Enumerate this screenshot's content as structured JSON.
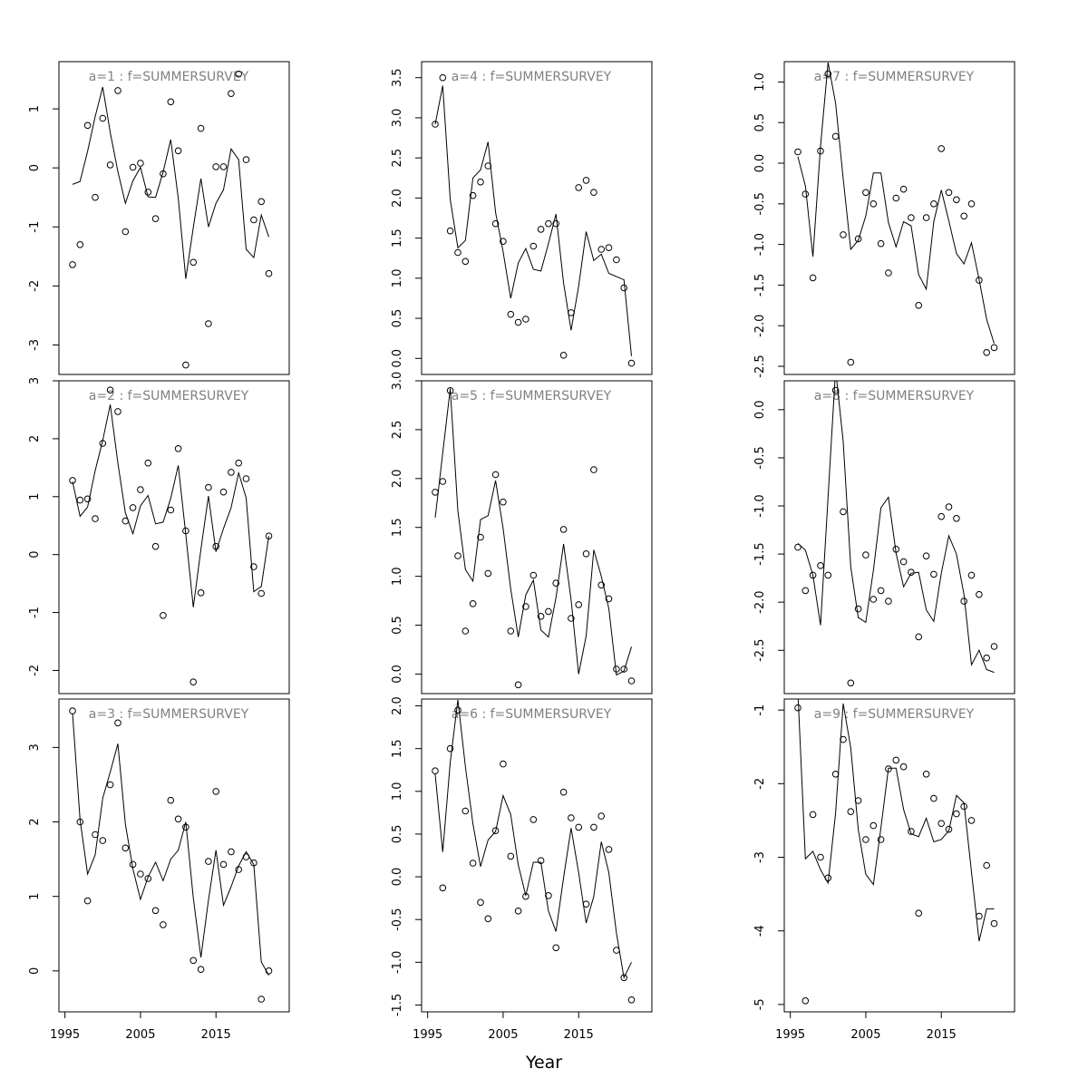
{
  "chart_data": {
    "type": "scatter",
    "xlabel": "Year",
    "x_ticks": [
      1995,
      2005,
      2015
    ],
    "panels": [
      {
        "title": "a=1 : f=SUMMERSURVEY",
        "ylim": [
          -3.5,
          1.8
        ],
        "y_ticks": [
          -3,
          -2,
          -1,
          0,
          1
        ],
        "years": [
          1996,
          1997,
          1998,
          1999,
          2000,
          2001,
          2002,
          2003,
          2004,
          2005,
          2006,
          2007,
          2008,
          2009,
          2010,
          2011,
          2012,
          2013,
          2014,
          2015,
          2016,
          2017,
          2018,
          2019,
          2020,
          2021,
          2022
        ],
        "observed": [
          -1.64,
          -1.3,
          0.72,
          -0.5,
          0.84,
          0.05,
          1.31,
          -1.08,
          0.01,
          0.08,
          -0.41,
          -0.86,
          -0.1,
          1.12,
          0.29,
          -3.34,
          -1.6,
          0.67,
          -2.64,
          0.02,
          0.02,
          1.26,
          1.59,
          0.14,
          -0.88,
          -0.57,
          -1.79
        ],
        "fitted": [
          -0.28,
          -0.23,
          0.28,
          0.87,
          1.37,
          0.6,
          -0.06,
          -0.6,
          -0.22,
          0.01,
          -0.49,
          -0.5,
          -0.07,
          0.48,
          -0.51,
          -1.88,
          -1.01,
          -0.18,
          -1.0,
          -0.6,
          -0.37,
          0.32,
          0.14,
          -1.38,
          -1.52,
          -0.8,
          -1.17
        ]
      },
      {
        "title": "a=2 : f=SUMMERSURVEY",
        "ylim": [
          -2.4,
          3.0
        ],
        "y_ticks": [
          -2,
          -1,
          0,
          1,
          2,
          3
        ],
        "years": [
          1996,
          1997,
          1998,
          1999,
          2000,
          2001,
          2002,
          2003,
          2004,
          2005,
          2006,
          2007,
          2008,
          2009,
          2010,
          2011,
          2012,
          2013,
          2014,
          2015,
          2016,
          2017,
          2018,
          2019,
          2020,
          2021,
          2022
        ],
        "observed": [
          1.28,
          0.94,
          0.96,
          0.62,
          1.92,
          2.84,
          2.47,
          0.58,
          0.81,
          1.12,
          1.58,
          0.14,
          -1.05,
          0.77,
          1.83,
          0.41,
          -2.2,
          -0.66,
          1.16,
          0.14,
          1.08,
          1.42,
          1.58,
          1.31,
          -0.21,
          -0.67,
          0.32
        ],
        "fitted": [
          1.26,
          0.66,
          0.82,
          1.45,
          1.97,
          2.59,
          1.58,
          0.72,
          0.36,
          0.84,
          1.02,
          0.53,
          0.56,
          0.97,
          1.54,
          0.35,
          -0.91,
          0.09,
          1.01,
          0.05,
          0.45,
          0.81,
          1.41,
          0.98,
          -0.64,
          -0.55,
          0.32
        ]
      },
      {
        "title": "a=3 : f=SUMMERSURVEY",
        "ylim": [
          -0.55,
          3.65
        ],
        "y_ticks": [
          0,
          1,
          2,
          3
        ],
        "years": [
          1996,
          1997,
          1998,
          1999,
          2000,
          2001,
          2002,
          2003,
          2004,
          2005,
          2006,
          2007,
          2008,
          2009,
          2010,
          2011,
          2012,
          2013,
          2014,
          2015,
          2016,
          2017,
          2018,
          2019,
          2020,
          2021,
          2022
        ],
        "observed": [
          3.49,
          2.0,
          0.94,
          1.83,
          1.75,
          2.5,
          3.33,
          1.65,
          1.43,
          1.3,
          1.24,
          0.81,
          0.62,
          2.29,
          2.04,
          1.93,
          0.14,
          0.02,
          1.47,
          2.41,
          1.43,
          1.6,
          1.36,
          1.53,
          1.45,
          -0.38,
          0.0
        ],
        "fitted": [
          3.46,
          2.03,
          1.3,
          1.56,
          2.32,
          2.67,
          3.05,
          1.97,
          1.37,
          0.96,
          1.26,
          1.46,
          1.21,
          1.5,
          1.62,
          2.0,
          0.98,
          0.18,
          0.95,
          1.62,
          0.88,
          1.13,
          1.41,
          1.6,
          1.43,
          0.12,
          -0.06
        ]
      },
      {
        "title": "a=4 : f=SUMMERSURVEY",
        "ylim": [
          -0.2,
          3.7
        ],
        "y_ticks": [
          0.0,
          0.5,
          1.0,
          1.5,
          2.0,
          2.5,
          3.0,
          3.5
        ],
        "years": [
          1996,
          1997,
          1998,
          1999,
          2000,
          2001,
          2002,
          2003,
          2004,
          2005,
          2006,
          2007,
          2008,
          2009,
          2010,
          2011,
          2012,
          2013,
          2014,
          2015,
          2016,
          2017,
          2018,
          2019,
          2020,
          2021,
          2022
        ],
        "observed": [
          2.92,
          3.5,
          1.59,
          1.32,
          1.21,
          2.03,
          2.2,
          2.4,
          1.68,
          1.46,
          0.55,
          0.45,
          0.49,
          1.4,
          1.61,
          1.68,
          1.68,
          0.04,
          0.57,
          2.13,
          2.22,
          2.07,
          1.36,
          1.38,
          1.23,
          0.88,
          -0.06
        ],
        "fitted": [
          2.92,
          3.4,
          1.98,
          1.38,
          1.47,
          2.25,
          2.35,
          2.7,
          1.82,
          1.33,
          0.75,
          1.19,
          1.37,
          1.11,
          1.09,
          1.43,
          1.8,
          0.94,
          0.35,
          0.9,
          1.58,
          1.22,
          1.3,
          1.06,
          1.02,
          0.98,
          0.03
        ]
      },
      {
        "title": "a=5 : f=SUMMERSURVEY",
        "ylim": [
          -0.2,
          3.0
        ],
        "y_ticks": [
          0.0,
          0.5,
          1.0,
          1.5,
          2.0,
          2.5,
          3.0
        ],
        "years": [
          1996,
          1997,
          1998,
          1999,
          2000,
          2001,
          2002,
          2003,
          2004,
          2005,
          2006,
          2007,
          2008,
          2009,
          2010,
          2011,
          2012,
          2013,
          2014,
          2015,
          2016,
          2017,
          2018,
          2019,
          2020,
          2021,
          2022
        ],
        "observed": [
          1.86,
          1.97,
          2.9,
          1.21,
          0.44,
          0.72,
          1.4,
          1.03,
          2.04,
          1.76,
          0.44,
          -0.11,
          0.69,
          1.01,
          0.59,
          0.64,
          0.93,
          1.48,
          0.57,
          0.71,
          1.23,
          2.09,
          0.91,
          0.77,
          0.05,
          0.05,
          -0.07
        ],
        "fitted": [
          1.6,
          2.26,
          2.92,
          1.67,
          1.07,
          0.95,
          1.58,
          1.62,
          1.98,
          1.49,
          0.87,
          0.38,
          0.81,
          0.96,
          0.45,
          0.38,
          0.78,
          1.33,
          0.76,
          0.0,
          0.39,
          1.27,
          1.0,
          0.67,
          -0.01,
          0.03,
          0.28
        ]
      },
      {
        "title": "a=6 : f=SUMMERSURVEY",
        "ylim": [
          -1.58,
          2.08
        ],
        "y_ticks": [
          -1.5,
          -1.0,
          -0.5,
          0.0,
          0.5,
          1.0,
          1.5,
          2.0
        ],
        "years": [
          1996,
          1997,
          1998,
          1999,
          2000,
          2001,
          2002,
          2003,
          2004,
          2005,
          2006,
          2007,
          2008,
          2009,
          2010,
          2011,
          2012,
          2013,
          2014,
          2015,
          2016,
          2017,
          2018,
          2019,
          2020,
          2021,
          2022
        ],
        "observed": [
          1.24,
          -0.13,
          1.5,
          1.95,
          0.77,
          0.16,
          -0.3,
          -0.49,
          0.54,
          1.32,
          0.24,
          -0.4,
          -0.23,
          0.67,
          0.19,
          -0.22,
          -0.83,
          0.99,
          0.69,
          0.58,
          -0.32,
          0.58,
          0.71,
          0.32,
          -0.86,
          -1.18,
          -1.44
        ],
        "fitted": [
          1.2,
          0.29,
          1.34,
          2.07,
          1.29,
          0.62,
          0.12,
          0.43,
          0.53,
          0.95,
          0.73,
          0.14,
          -0.22,
          0.17,
          0.17,
          -0.4,
          -0.64,
          -0.01,
          0.57,
          0.05,
          -0.54,
          -0.23,
          0.41,
          0.05,
          -0.66,
          -1.18,
          -1.0
        ]
      },
      {
        "title": "a=7 : f=SUMMERSURVEY",
        "ylim": [
          -2.6,
          1.25
        ],
        "y_ticks": [
          -2.5,
          -2.0,
          -1.5,
          -1.0,
          -0.5,
          0.0,
          0.5,
          1.0
        ],
        "years": [
          1996,
          1997,
          1998,
          1999,
          2000,
          2001,
          2002,
          2003,
          2004,
          2005,
          2006,
          2007,
          2008,
          2009,
          2010,
          2011,
          2012,
          2013,
          2014,
          2015,
          2016,
          2017,
          2018,
          2019,
          2020,
          2021,
          2022
        ],
        "observed": [
          0.14,
          -0.38,
          -1.41,
          0.15,
          1.1,
          0.33,
          -0.88,
          -2.45,
          -0.93,
          -0.36,
          -0.5,
          -0.99,
          -1.35,
          -0.43,
          -0.32,
          -0.67,
          -1.75,
          -0.67,
          -0.5,
          0.18,
          -0.36,
          -0.45,
          -0.65,
          -0.5,
          -1.44,
          -2.33,
          -2.27
        ],
        "fitted": [
          0.08,
          -0.28,
          -1.15,
          0.21,
          1.24,
          0.74,
          -0.19,
          -1.06,
          -0.95,
          -0.65,
          -0.12,
          -0.12,
          -0.73,
          -1.03,
          -0.72,
          -0.77,
          -1.37,
          -1.55,
          -0.72,
          -0.33,
          -0.71,
          -1.11,
          -1.24,
          -0.98,
          -1.43,
          -1.92,
          -2.22
        ]
      },
      {
        "title": "a=8 : f=SUMMERSURVEY",
        "ylim": [
          -2.95,
          0.3
        ],
        "y_ticks": [
          -2.5,
          -2.0,
          -1.5,
          -1.0,
          -0.5,
          0.0
        ],
        "years": [
          1996,
          1997,
          1998,
          1999,
          2000,
          2001,
          2002,
          2003,
          2004,
          2005,
          2006,
          2007,
          2008,
          2009,
          2010,
          2011,
          2012,
          2013,
          2014,
          2015,
          2016,
          2017,
          2018,
          2019,
          2020,
          2021,
          2022
        ],
        "observed": [
          -1.43,
          -1.88,
          -1.72,
          -1.62,
          -1.72,
          0.2,
          -1.06,
          -2.84,
          -2.07,
          -1.51,
          -1.97,
          -1.88,
          -1.99,
          -1.45,
          -1.58,
          -1.69,
          -2.36,
          -1.52,
          -1.71,
          -1.11,
          -1.01,
          -1.13,
          -1.99,
          -1.72,
          -1.92,
          -2.58,
          -2.46
        ],
        "fitted": [
          -1.39,
          -1.46,
          -1.72,
          -2.24,
          -0.91,
          0.42,
          -0.33,
          -1.63,
          -2.16,
          -2.21,
          -1.67,
          -1.02,
          -0.91,
          -1.49,
          -1.84,
          -1.7,
          -1.69,
          -2.08,
          -2.2,
          -1.7,
          -1.31,
          -1.5,
          -1.92,
          -2.65,
          -2.5,
          -2.7,
          -2.73
        ]
      },
      {
        "title": "a=9 : f=SUMMERSURVEY",
        "ylim": [
          -5.1,
          -0.85
        ],
        "y_ticks": [
          -5,
          -4,
          -3,
          -2,
          -1
        ],
        "years": [
          1996,
          1997,
          1998,
          1999,
          2000,
          2001,
          2002,
          2003,
          2004,
          2005,
          2006,
          2007,
          2008,
          2009,
          2010,
          2011,
          2012,
          2013,
          2014,
          2015,
          2016,
          2017,
          2018,
          2019,
          2020,
          2021,
          2022
        ],
        "observed": [
          -0.97,
          -4.95,
          -2.42,
          -3.0,
          -3.28,
          -1.87,
          -1.4,
          -2.38,
          -2.23,
          -2.76,
          -2.57,
          -2.76,
          -1.8,
          -1.68,
          -1.77,
          -2.65,
          -3.76,
          -1.87,
          -2.2,
          -2.54,
          -2.62,
          -2.41,
          -2.31,
          -2.5,
          -3.8,
          -3.11,
          -3.9
        ],
        "fitted": [
          -0.75,
          -3.02,
          -2.92,
          -3.17,
          -3.35,
          -2.4,
          -0.91,
          -1.51,
          -2.62,
          -3.23,
          -3.37,
          -2.6,
          -1.79,
          -1.79,
          -2.35,
          -2.68,
          -2.72,
          -2.47,
          -2.79,
          -2.76,
          -2.64,
          -2.16,
          -2.26,
          -3.2,
          -4.14,
          -3.7,
          -3.7
        ]
      }
    ]
  }
}
